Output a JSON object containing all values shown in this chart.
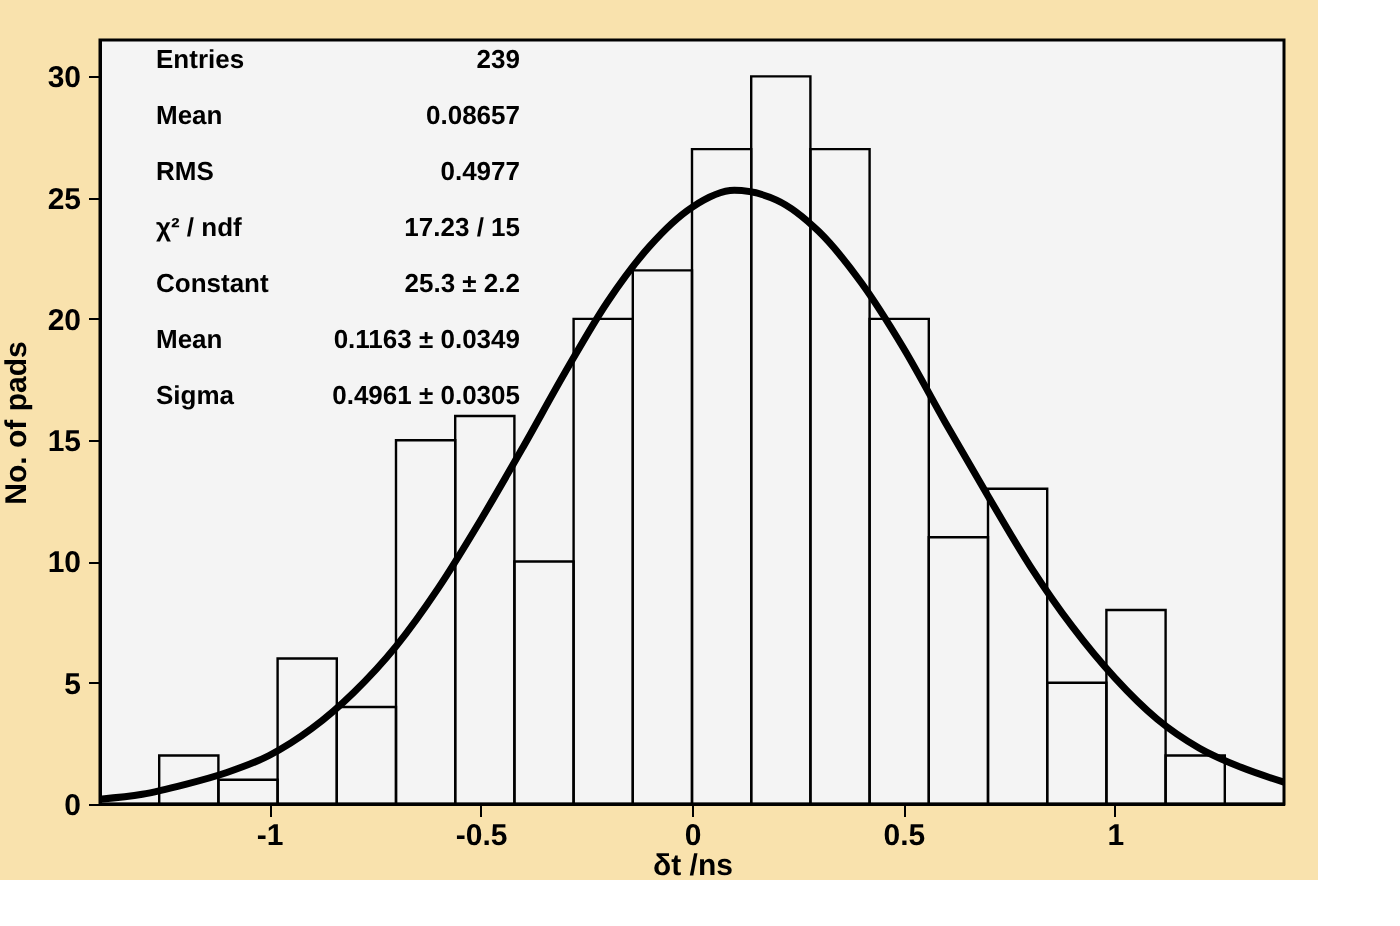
{
  "chart_data": {
    "type": "histogram",
    "xlabel": "δt /ns",
    "ylabel": "No. of pads",
    "bins": [
      -1.4,
      -1.26,
      -1.12,
      -0.98,
      -0.84,
      -0.7,
      -0.56,
      -0.42,
      -0.28,
      -0.14,
      0,
      0.14,
      0.28,
      0.42,
      0.56,
      0.7,
      0.84,
      0.98,
      1.12,
      1.26,
      1.4
    ],
    "values": [
      0,
      2,
      1,
      6,
      4,
      15,
      16,
      10,
      20,
      22,
      27,
      30,
      27,
      20,
      11,
      13,
      5,
      8,
      2,
      0
    ],
    "color": "#000000",
    "series": [
      {
        "type": "line",
        "color": "#000000",
        "x": [
          -1.4,
          -1.3,
          -1.2,
          -1.1,
          -1.0,
          -0.9,
          -0.8,
          -0.7,
          -0.6,
          -0.5,
          -0.4,
          -0.3,
          -0.2,
          -0.1,
          0,
          0.1,
          0.2,
          0.3,
          0.4,
          0.5,
          0.6,
          0.7,
          0.8,
          0.9,
          1.0,
          1.1,
          1.2,
          1.3,
          1.4
        ],
        "values": [
          0.2,
          0.4,
          0.8,
          1.3,
          2.0,
          3.1,
          4.6,
          6.5,
          8.9,
          11.7,
          14.7,
          17.8,
          20.7,
          23.0,
          24.6,
          25.3,
          24.9,
          23.6,
          21.5,
          18.8,
          15.7,
          12.7,
          9.8,
          7.3,
          5.2,
          3.5,
          2.3,
          1.5,
          0.9
        ]
      }
    ],
    "xlim": [
      -1.4,
      1.4
    ],
    "xticks": [
      -1,
      -0.5,
      0,
      0.5,
      1
    ],
    "ylim": [
      0,
      31.5
    ],
    "yticks": [
      0,
      5,
      10,
      15,
      20,
      25,
      30
    ],
    "grid": false,
    "annotations": [
      "Entries",
      "239",
      "Mean",
      "0.08657",
      "RMS",
      "0.4977",
      "χ² / ndf",
      "17.23 / 15",
      "Constant",
      "25.3 ± 2.2",
      "Mean",
      "0.1163 ± 0.0349",
      "Sigma",
      "0.4961 ± 0.0305"
    ]
  }
}
